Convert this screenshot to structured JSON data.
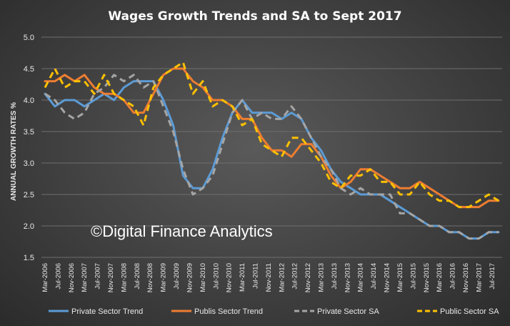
{
  "chart_data": {
    "type": "line",
    "title": "Wages Growth Trends and SA to Sept 2017",
    "ylabel": "ANNUAL GROWTH RATES %",
    "xlabel": "",
    "ylim": [
      1.5,
      5.0
    ],
    "yticks": [
      "1.5",
      "2.0",
      "2.5",
      "3.0",
      "3.5",
      "4.0",
      "4.5",
      "5.0"
    ],
    "grid": "horizontal",
    "legend_position": "bottom",
    "watermark": "©Digital Finance Analytics",
    "x_tick_labels": [
      "Mar-2006",
      "Jul-2006",
      "Nov-2006",
      "Mar-2007",
      "Jul-2007",
      "Nov-2007",
      "Mar-2008",
      "Jul-2008",
      "Nov-2008",
      "Mar-2009",
      "Jul-2009",
      "Nov-2009",
      "Mar-2010",
      "Jul-2010",
      "Nov-2010",
      "Mar-2011",
      "Jul-2011",
      "Nov-2011",
      "Mar-2012",
      "Jul-2012",
      "Nov-2012",
      "Mar-2013",
      "Jul-2013",
      "Nov-2013",
      "Mar-2014",
      "Jul-2014",
      "Nov-2014",
      "Mar-2015",
      "Jul-2015",
      "Nov-2015",
      "Mar-2016",
      "Jul-2016",
      "Nov-2016",
      "Mar-2017",
      "Jul-2017"
    ],
    "x": [
      "Mar-2006",
      "Jun-2006",
      "Sep-2006",
      "Dec-2006",
      "Mar-2007",
      "Jun-2007",
      "Sep-2007",
      "Dec-2007",
      "Mar-2008",
      "Jun-2008",
      "Sep-2008",
      "Dec-2008",
      "Mar-2009",
      "Jun-2009",
      "Sep-2009",
      "Dec-2009",
      "Mar-2010",
      "Jun-2010",
      "Sep-2010",
      "Dec-2010",
      "Mar-2011",
      "Jun-2011",
      "Sep-2011",
      "Dec-2011",
      "Mar-2012",
      "Jun-2012",
      "Sep-2012",
      "Dec-2012",
      "Mar-2013",
      "Jun-2013",
      "Sep-2013",
      "Dec-2013",
      "Mar-2014",
      "Jun-2014",
      "Sep-2014",
      "Dec-2014",
      "Mar-2015",
      "Jun-2015",
      "Sep-2015",
      "Dec-2015",
      "Mar-2016",
      "Jun-2016",
      "Sep-2016",
      "Dec-2016",
      "Mar-2017",
      "Jun-2017",
      "Sep-2017"
    ],
    "series": [
      {
        "name": "Private Sector Trend",
        "color": "#5b9bd5",
        "style": "solid",
        "values": [
          4.1,
          3.9,
          4.0,
          4.0,
          3.9,
          4.0,
          4.1,
          4.0,
          4.2,
          4.3,
          4.3,
          4.3,
          4.0,
          3.6,
          2.8,
          2.6,
          2.6,
          2.9,
          3.4,
          3.8,
          4.0,
          3.8,
          3.8,
          3.8,
          3.7,
          3.8,
          3.7,
          3.4,
          3.2,
          2.9,
          2.7,
          2.6,
          2.5,
          2.5,
          2.5,
          2.4,
          2.3,
          2.2,
          2.1,
          2.0,
          2.0,
          1.9,
          1.9,
          1.8,
          1.8,
          1.9,
          1.9
        ]
      },
      {
        "name": "Publis Sector Trend",
        "color": "#ed7d31",
        "style": "solid",
        "values": [
          4.3,
          4.3,
          4.4,
          4.3,
          4.4,
          4.2,
          4.1,
          4.1,
          4.0,
          3.8,
          3.8,
          4.1,
          4.4,
          4.5,
          4.5,
          4.3,
          4.2,
          4.0,
          4.0,
          3.9,
          3.7,
          3.7,
          3.4,
          3.2,
          3.2,
          3.1,
          3.3,
          3.3,
          3.1,
          2.8,
          2.6,
          2.7,
          2.9,
          2.9,
          2.8,
          2.7,
          2.6,
          2.6,
          2.7,
          2.6,
          2.5,
          2.4,
          2.3,
          2.3,
          2.3,
          2.4,
          2.4
        ]
      },
      {
        "name": "Private Sector SA",
        "color": "#a5a5a5",
        "style": "dashed",
        "values": [
          4.1,
          4.0,
          3.8,
          3.7,
          3.8,
          4.1,
          4.2,
          4.4,
          4.3,
          4.4,
          4.2,
          4.3,
          3.9,
          3.5,
          2.9,
          2.5,
          2.6,
          2.8,
          3.3,
          3.8,
          4.0,
          3.7,
          3.8,
          3.7,
          3.7,
          3.9,
          3.7,
          3.4,
          3.1,
          2.9,
          2.6,
          2.5,
          2.6,
          2.5,
          2.5,
          2.5,
          2.2,
          2.2,
          2.1,
          2.0,
          2.0,
          1.9,
          1.9,
          1.8,
          1.8,
          1.9,
          1.9
        ]
      },
      {
        "name": "Public Sector SA",
        "color": "#ffc000",
        "style": "dashed",
        "values": [
          4.2,
          4.5,
          4.2,
          4.3,
          4.3,
          4.1,
          4.4,
          4.1,
          4.0,
          3.9,
          3.6,
          4.2,
          4.4,
          4.5,
          4.6,
          4.1,
          4.3,
          3.9,
          4.0,
          3.9,
          3.6,
          3.7,
          3.3,
          3.2,
          3.1,
          3.4,
          3.4,
          3.2,
          3.0,
          2.7,
          2.6,
          2.8,
          2.8,
          2.9,
          2.7,
          2.7,
          2.5,
          2.5,
          2.7,
          2.5,
          2.4,
          2.4,
          2.3,
          2.3,
          2.4,
          2.5,
          2.4
        ]
      }
    ]
  }
}
